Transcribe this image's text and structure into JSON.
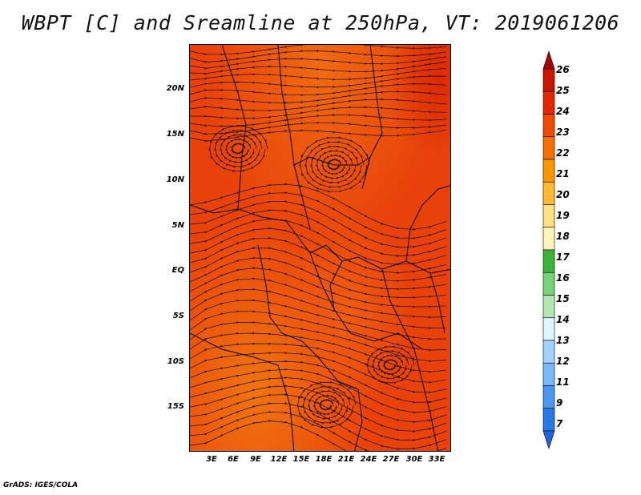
{
  "title": "WBPT [C] and Sreamline at 250hPa, VT: 2019061206",
  "footer": "GrADS: IGES/COLA",
  "lat_labels": [
    "20N",
    "15N",
    "10N",
    "5N",
    "EQ",
    "5S",
    "10S",
    "15S"
  ],
  "lon_labels": [
    "3E",
    "6E",
    "9E",
    "12E",
    "15E",
    "18E",
    "21E",
    "24E",
    "27E",
    "30E",
    "33E"
  ],
  "colorbar": {
    "labels": [
      "26",
      "25",
      "24",
      "23",
      "22",
      "21",
      "20",
      "19",
      "18",
      "17",
      "16",
      "15",
      "14",
      "13",
      "12",
      "11",
      "9",
      "7"
    ],
    "colors": [
      "#a50000",
      "#c81400",
      "#e12800",
      "#f04b00",
      "#f66e00",
      "#fa9600",
      "#fcb933",
      "#fde082",
      "#fef3b9",
      "#3cb43c",
      "#78d278",
      "#b4e6b4",
      "#dcf5ff",
      "#a0d2ff",
      "#78b9fa",
      "#4b96f0",
      "#2878e6",
      "#1e64dc"
    ]
  },
  "map": {
    "background_color": "#e8420a",
    "region": "Central & East Africa, 250hPa",
    "streamline_color": "#1a0a00"
  }
}
